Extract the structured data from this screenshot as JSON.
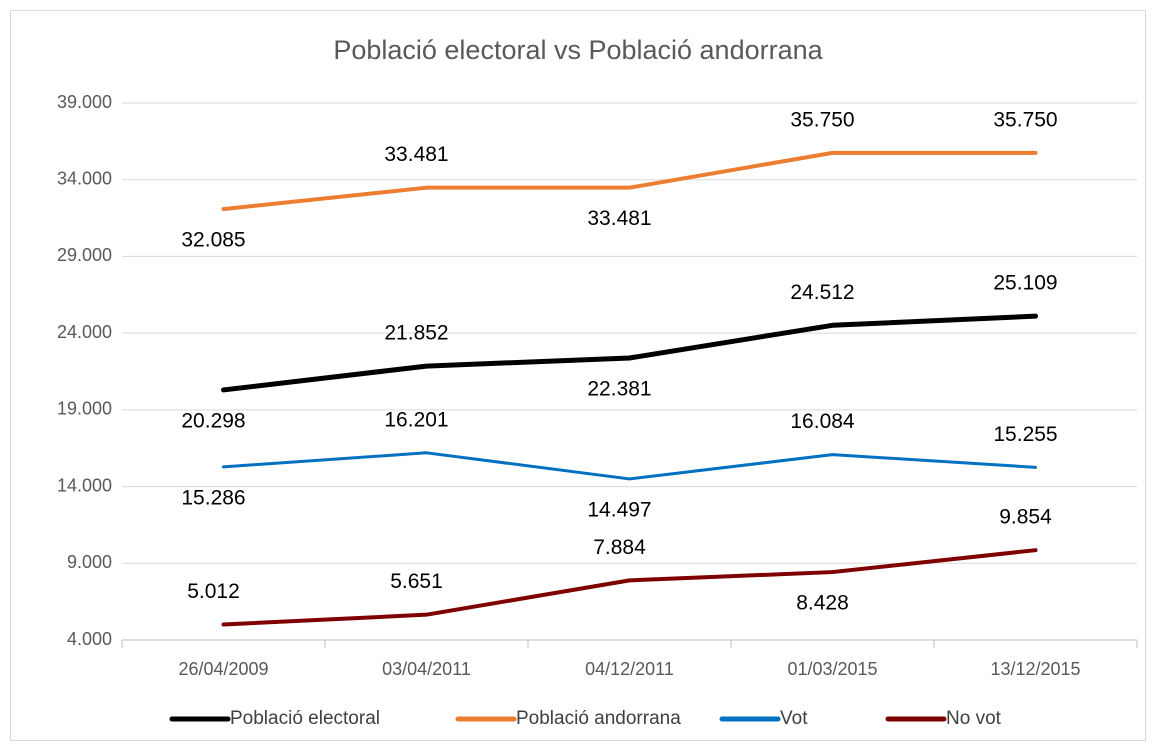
{
  "chart_data": {
    "type": "line",
    "title": "Població electoral vs Població andorrana",
    "categories": [
      "26/04/2009",
      "03/04/2011",
      "04/12/2011",
      "01/03/2015",
      "13/12/2015"
    ],
    "series": [
      {
        "name": "Població electoral",
        "color": "#000000",
        "values": [
          20298,
          21852,
          22381,
          24512,
          25109
        ],
        "value_labels": [
          "20.298",
          "21.852",
          "22.381",
          "24.512",
          "25.109"
        ]
      },
      {
        "name": "Població andorrana",
        "color": "#ed7d31",
        "values": [
          32085,
          33481,
          33481,
          35750,
          35750
        ],
        "value_labels": [
          "32.085",
          "33.481",
          "33.481",
          "35.750",
          "35.750"
        ]
      },
      {
        "name": "Vot",
        "color": "#0070c0",
        "values": [
          15286,
          16201,
          14497,
          16084,
          15255
        ],
        "value_labels": [
          "15.286",
          "16.201",
          "14.497",
          "16.084",
          "15.255"
        ]
      },
      {
        "name": "No vot",
        "color": "#7f0000",
        "values": [
          5012,
          5651,
          7884,
          8428,
          9854
        ],
        "value_labels": [
          "5.012",
          "5.651",
          "7.884",
          "8.428",
          "9.854"
        ]
      }
    ],
    "ylim": [
      4000,
      39000
    ],
    "yticks": [
      {
        "value": 4000,
        "label": "4.000"
      },
      {
        "value": 9000,
        "label": "9.000"
      },
      {
        "value": 14000,
        "label": "14.000"
      },
      {
        "value": 19000,
        "label": "19.000"
      },
      {
        "value": 24000,
        "label": "24.000"
      },
      {
        "value": 29000,
        "label": "29.000"
      },
      {
        "value": 34000,
        "label": "34.000"
      },
      {
        "value": 39000,
        "label": "39.000"
      }
    ],
    "grid": true,
    "legend": "bottom"
  }
}
